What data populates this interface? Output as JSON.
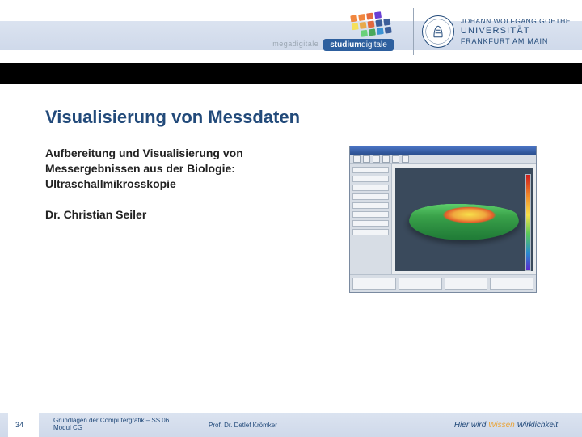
{
  "header": {
    "megadigitale_label": "megadigitale",
    "studium_html": "studium",
    "studium_suffix": "digitale",
    "uni_line1": "JOHANN WOLFGANG GOETHE",
    "uni_line2": "UNIVERSITÄT",
    "uni_line3": "FRANKFURT AM MAIN",
    "square_colors": [
      "#f07a2a",
      "#f07a2a",
      "#e25c2a",
      "#5a2acf",
      "",
      "#f7e04a",
      "#e9a43a",
      "#e25c2a",
      "#2a4f8f",
      "#2a4f8f",
      "",
      "#5ecf6b",
      "#3aa24a",
      "#2a8acf",
      "#2a4f8f"
    ]
  },
  "content": {
    "title": "Visualisierung von Messdaten",
    "subtitle": "Aufbereitung und Visualisierung von Messergebnissen aus der Biologie: Ultraschallmikrosskopie",
    "author": "Dr. Christian Seiler"
  },
  "figure": {
    "background": "#3a4a5c",
    "surface_gradient_peak": "#f7e04a",
    "surface_gradient_base": "#1f7a36",
    "colorbar_stops": [
      "#cf1b1b",
      "#f08a2a",
      "#f7e04a",
      "#58c85a",
      "#2a8acf",
      "#5a2acf"
    ]
  },
  "footer": {
    "slide_number": "34",
    "course_line1": "Grundlagen der Computergrafik – SS 06",
    "course_line2": "Modul CG",
    "professor": "Prof. Dr. Detlef Krömker",
    "motto_prefix": "Hier wird ",
    "motto_accent": "Wissen",
    "motto_suffix": " Wirklichkeit"
  },
  "colors": {
    "brand_blue": "#224a7a",
    "band": "#dbe3f0",
    "accent_orange": "#e9a43a"
  }
}
